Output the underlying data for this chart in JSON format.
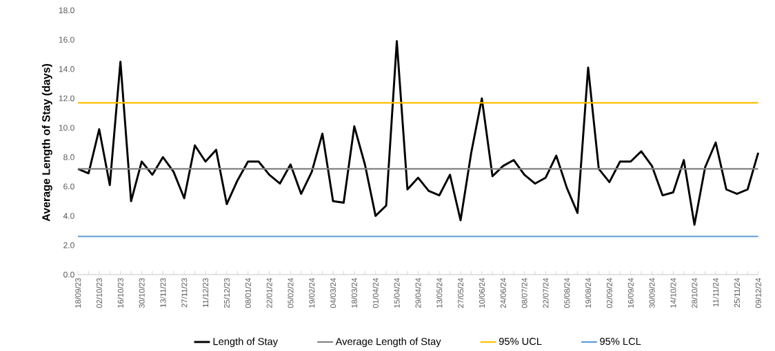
{
  "chart_data": {
    "type": "line",
    "ylabel": "Average Length of Stay (days)",
    "categories": [
      "18/09/23",
      null,
      "02/10/23",
      null,
      "16/10/23",
      null,
      "30/10/23",
      null,
      "13/11/23",
      null,
      "27/11/23",
      null,
      "11/12/23",
      null,
      "25/12/23",
      null,
      "08/01/24",
      null,
      "22/01/24",
      null,
      "05/02/24",
      null,
      "19/02/24",
      null,
      "04/03/24",
      null,
      "18/03/24",
      null,
      "01/04/24",
      null,
      "15/04/24",
      null,
      "29/04/24",
      null,
      "13/05/24",
      null,
      "27/05/24",
      null,
      "10/06/24",
      null,
      "24/06/24",
      null,
      "08/07/24",
      null,
      "22/07/24",
      null,
      "05/08/24",
      null,
      "19/08/24",
      null,
      "02/09/24",
      null,
      "16/09/24",
      null,
      "30/09/24",
      null,
      "14/10/24",
      null,
      "28/10/24",
      null,
      "11/11/24",
      null,
      "25/11/24",
      null,
      "09/12/24"
    ],
    "series": [
      {
        "name": "Length of Stay",
        "color": "#000000",
        "values": [
          7.2,
          6.9,
          9.9,
          6.1,
          14.5,
          5.0,
          7.7,
          6.8,
          8.0,
          7.0,
          5.2,
          8.8,
          7.7,
          8.5,
          4.8,
          6.4,
          7.7,
          7.7,
          6.8,
          6.2,
          7.5,
          5.5,
          7.0,
          9.6,
          5.0,
          4.9,
          10.1,
          7.5,
          4.0,
          4.7,
          15.9,
          5.8,
          6.6,
          5.7,
          5.4,
          6.8,
          3.7,
          8.3,
          12.0,
          6.7,
          7.4,
          7.8,
          6.8,
          6.2,
          6.6,
          8.1,
          5.9,
          4.2,
          14.1,
          7.2,
          6.3,
          7.7,
          7.7,
          8.4,
          7.4,
          5.4,
          5.6,
          7.8,
          3.4,
          7.3,
          9.0,
          5.8,
          5.5,
          5.8,
          8.3
        ]
      },
      {
        "name": "Average Length of Stay",
        "color": "#808080",
        "values": [
          7.2,
          7.2,
          7.2,
          7.2,
          7.2,
          7.2,
          7.2,
          7.2,
          7.2,
          7.2,
          7.2,
          7.2,
          7.2,
          7.2,
          7.2,
          7.2,
          7.2,
          7.2,
          7.2,
          7.2,
          7.2,
          7.2,
          7.2,
          7.2,
          7.2,
          7.2,
          7.2,
          7.2,
          7.2,
          7.2,
          7.2,
          7.2,
          7.2,
          7.2,
          7.2,
          7.2,
          7.2,
          7.2,
          7.2,
          7.2,
          7.2,
          7.2,
          7.2,
          7.2,
          7.2,
          7.2,
          7.2,
          7.2,
          7.2,
          7.2,
          7.2,
          7.2,
          7.2,
          7.2,
          7.2,
          7.2,
          7.2,
          7.2,
          7.2,
          7.2,
          7.2,
          7.2,
          7.2,
          7.2,
          7.2
        ]
      },
      {
        "name": "95% UCL",
        "color": "#ffc000",
        "values": [
          11.7,
          11.7,
          11.7,
          11.7,
          11.7,
          11.7,
          11.7,
          11.7,
          11.7,
          11.7,
          11.7,
          11.7,
          11.7,
          11.7,
          11.7,
          11.7,
          11.7,
          11.7,
          11.7,
          11.7,
          11.7,
          11.7,
          11.7,
          11.7,
          11.7,
          11.7,
          11.7,
          11.7,
          11.7,
          11.7,
          11.7,
          11.7,
          11.7,
          11.7,
          11.7,
          11.7,
          11.7,
          11.7,
          11.7,
          11.7,
          11.7,
          11.7,
          11.7,
          11.7,
          11.7,
          11.7,
          11.7,
          11.7,
          11.7,
          11.7,
          11.7,
          11.7,
          11.7,
          11.7,
          11.7,
          11.7,
          11.7,
          11.7,
          11.7,
          11.7,
          11.7,
          11.7,
          11.7,
          11.7,
          11.7
        ]
      },
      {
        "name": "95% LCL",
        "color": "#5b9bd5",
        "values": [
          2.6,
          2.6,
          2.6,
          2.6,
          2.6,
          2.6,
          2.6,
          2.6,
          2.6,
          2.6,
          2.6,
          2.6,
          2.6,
          2.6,
          2.6,
          2.6,
          2.6,
          2.6,
          2.6,
          2.6,
          2.6,
          2.6,
          2.6,
          2.6,
          2.6,
          2.6,
          2.6,
          2.6,
          2.6,
          2.6,
          2.6,
          2.6,
          2.6,
          2.6,
          2.6,
          2.6,
          2.6,
          2.6,
          2.6,
          2.6,
          2.6,
          2.6,
          2.6,
          2.6,
          2.6,
          2.6,
          2.6,
          2.6,
          2.6,
          2.6,
          2.6,
          2.6,
          2.6,
          2.6,
          2.6,
          2.6,
          2.6,
          2.6,
          2.6,
          2.6,
          2.6,
          2.6,
          2.6,
          2.6,
          2.6
        ]
      }
    ],
    "ylim": [
      0,
      18
    ],
    "yticks": [
      {
        "value": 0,
        "label": "0.0"
      },
      {
        "value": 2,
        "label": "2.0"
      },
      {
        "value": 4,
        "label": "4.0"
      },
      {
        "value": 6,
        "label": "6.0"
      },
      {
        "value": 8,
        "label": "8.0"
      },
      {
        "value": 10,
        "label": "10.0"
      },
      {
        "value": 12,
        "label": "12.0"
      },
      {
        "value": 14,
        "label": "14.0"
      },
      {
        "value": 16,
        "label": "16.0"
      },
      {
        "value": 18,
        "label": "18.0"
      }
    ],
    "grid": false,
    "legend": "bottom",
    "marker": "none",
    "line_style": "solid"
  }
}
